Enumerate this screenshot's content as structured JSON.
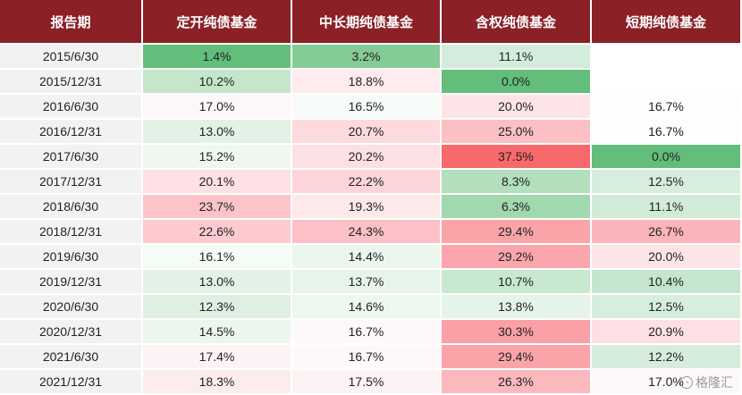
{
  "headers": [
    "报告期",
    "定开纯债基金",
    "中长期纯债基金",
    "含权纯债基金",
    "短期纯债基金"
  ],
  "rows": [
    {
      "period": "2015/6/30",
      "values": [
        "1.4%",
        "3.2%",
        "11.1%",
        ""
      ],
      "colors": [
        "#63be7b",
        "#85cb95",
        "#d4edda",
        "#ffffff"
      ]
    },
    {
      "period": "2015/12/31",
      "values": [
        "10.2%",
        "18.8%",
        "0.0%",
        ""
      ],
      "colors": [
        "#c6e6cc",
        "#fdebed",
        "#63be7b",
        "#ffffff"
      ]
    },
    {
      "period": "2016/6/30",
      "values": [
        "17.0%",
        "16.5%",
        "20.0%",
        "16.7%"
      ],
      "colors": [
        "#fdf7f9",
        "#f8fcf9",
        "#fde4e7",
        "#fcfdfc"
      ]
    },
    {
      "period": "2016/12/31",
      "values": [
        "13.0%",
        "20.7%",
        "25.0%",
        "16.7%"
      ],
      "colors": [
        "#e2f2e6",
        "#fcdadd",
        "#fcbfc4",
        "#fcfdfc"
      ]
    },
    {
      "period": "2017/6/30",
      "values": [
        "15.2%",
        "20.2%",
        "37.5%",
        "0.0%"
      ],
      "colors": [
        "#eef8f0",
        "#fde0e3",
        "#f8696b",
        "#63be7b"
      ]
    },
    {
      "period": "2017/12/31",
      "values": [
        "20.1%",
        "22.2%",
        "8.3%",
        "12.5%"
      ],
      "colors": [
        "#fde1e4",
        "#fcd5d9",
        "#b3dfbd",
        "#d8eedd"
      ]
    },
    {
      "period": "2018/6/30",
      "values": [
        "23.7%",
        "19.3%",
        "6.3%",
        "11.1%"
      ],
      "colors": [
        "#fcc4c9",
        "#fde8ea",
        "#a2d8ae",
        "#d2ebd7"
      ]
    },
    {
      "period": "2018/12/31",
      "values": [
        "22.6%",
        "24.3%",
        "29.4%",
        "26.7%"
      ],
      "colors": [
        "#fccacf",
        "#fbc1c6",
        "#faa4aa",
        "#fbb5ba"
      ]
    },
    {
      "period": "2019/6/30",
      "values": [
        "16.1%",
        "14.4%",
        "29.2%",
        "20.0%"
      ],
      "colors": [
        "#f5fbf7",
        "#ebf6ee",
        "#faa6ac",
        "#fde4e7"
      ]
    },
    {
      "period": "2019/12/31",
      "values": [
        "13.0%",
        "13.7%",
        "10.7%",
        "10.4%"
      ],
      "colors": [
        "#e2f2e6",
        "#e6f4e9",
        "#c9e8d0",
        "#c5e6cc"
      ]
    },
    {
      "period": "2020/6/30",
      "values": [
        "12.3%",
        "14.6%",
        "13.8%",
        "12.5%"
      ],
      "colors": [
        "#ddf0e2",
        "#ecf7ef",
        "#e5f4e9",
        "#d8eedd"
      ]
    },
    {
      "period": "2020/12/31",
      "values": [
        "14.5%",
        "16.7%",
        "30.3%",
        "20.9%"
      ],
      "colors": [
        "#ebf6ee",
        "#fdf9fa",
        "#faa0a6",
        "#fde0e3"
      ]
    },
    {
      "period": "2021/6/30",
      "values": [
        "17.4%",
        "16.7%",
        "29.4%",
        "12.2%"
      ],
      "colors": [
        "#fdf3f5",
        "#fdf9fa",
        "#faa4aa",
        "#d6eddb"
      ]
    },
    {
      "period": "2021/12/31",
      "values": [
        "18.3%",
        "17.5%",
        "26.3%",
        "17.0%"
      ],
      "colors": [
        "#fdeced",
        "#fdf2f4",
        "#fbb8bd",
        "#fdf8f9"
      ]
    }
  ],
  "watermark": "格隆汇"
}
